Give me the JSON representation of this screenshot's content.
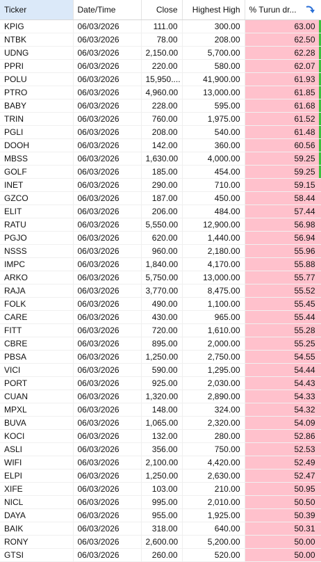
{
  "table": {
    "headers": [
      "Ticker",
      "Date/Time",
      "Close",
      "Highest High",
      "% Turun dr..."
    ],
    "rows": [
      [
        "KPIG",
        "06/03/2026",
        "111.00",
        "300.00",
        "63.00"
      ],
      [
        "NTBK",
        "06/03/2026",
        "78.00",
        "208.00",
        "62.50"
      ],
      [
        "UDNG",
        "06/03/2026",
        "2,150.00",
        "5,700.00",
        "62.28"
      ],
      [
        "PPRI",
        "06/03/2026",
        "220.00",
        "580.00",
        "62.07"
      ],
      [
        "POLU",
        "06/03/2026",
        "15,950....",
        "41,900.00",
        "61.93"
      ],
      [
        "PTRO",
        "06/03/2026",
        "4,960.00",
        "13,000.00",
        "61.85"
      ],
      [
        "BABY",
        "06/03/2026",
        "228.00",
        "595.00",
        "61.68"
      ],
      [
        "TRIN",
        "06/03/2026",
        "760.00",
        "1,975.00",
        "61.52"
      ],
      [
        "PGLI",
        "06/03/2026",
        "208.00",
        "540.00",
        "61.48"
      ],
      [
        "DOOH",
        "06/03/2026",
        "142.00",
        "360.00",
        "60.56"
      ],
      [
        "MBSS",
        "06/03/2026",
        "1,630.00",
        "4,000.00",
        "59.25"
      ],
      [
        "GOLF",
        "06/03/2026",
        "185.00",
        "454.00",
        "59.25"
      ],
      [
        "INET",
        "06/03/2026",
        "290.00",
        "710.00",
        "59.15"
      ],
      [
        "GZCO",
        "06/03/2026",
        "187.00",
        "450.00",
        "58.44"
      ],
      [
        "ELIT",
        "06/03/2026",
        "206.00",
        "484.00",
        "57.44"
      ],
      [
        "RATU",
        "06/03/2026",
        "5,550.00",
        "12,900.00",
        "56.98"
      ],
      [
        "PGJO",
        "06/03/2026",
        "620.00",
        "1,440.00",
        "56.94"
      ],
      [
        "NSSS",
        "06/03/2026",
        "960.00",
        "2,180.00",
        "55.96"
      ],
      [
        "IMPC",
        "06/03/2026",
        "1,840.00",
        "4,170.00",
        "55.88"
      ],
      [
        "ARKO",
        "06/03/2026",
        "5,750.00",
        "13,000.00",
        "55.77"
      ],
      [
        "RAJA",
        "06/03/2026",
        "3,770.00",
        "8,475.00",
        "55.52"
      ],
      [
        "FOLK",
        "06/03/2026",
        "490.00",
        "1,100.00",
        "55.45"
      ],
      [
        "CARE",
        "06/03/2026",
        "430.00",
        "965.00",
        "55.44"
      ],
      [
        "FITT",
        "06/03/2026",
        "720.00",
        "1,610.00",
        "55.28"
      ],
      [
        "CBRE",
        "06/03/2026",
        "895.00",
        "2,000.00",
        "55.25"
      ],
      [
        "PBSA",
        "06/03/2026",
        "1,250.00",
        "2,750.00",
        "54.55"
      ],
      [
        "VICI",
        "06/03/2026",
        "590.00",
        "1,295.00",
        "54.44"
      ],
      [
        "PORT",
        "06/03/2026",
        "925.00",
        "2,030.00",
        "54.43"
      ],
      [
        "CUAN",
        "06/03/2026",
        "1,320.00",
        "2,890.00",
        "54.33"
      ],
      [
        "MPXL",
        "06/03/2026",
        "148.00",
        "324.00",
        "54.32"
      ],
      [
        "BUVA",
        "06/03/2026",
        "1,065.00",
        "2,320.00",
        "54.09"
      ],
      [
        "KOCI",
        "06/03/2026",
        "132.00",
        "280.00",
        "52.86"
      ],
      [
        "ASLI",
        "06/03/2026",
        "356.00",
        "750.00",
        "52.53"
      ],
      [
        "WIFI",
        "06/03/2026",
        "2,100.00",
        "4,420.00",
        "52.49"
      ],
      [
        "ELPI",
        "06/03/2026",
        "1,250.00",
        "2,630.00",
        "52.47"
      ],
      [
        "XIFE",
        "06/03/2026",
        "103.00",
        "210.00",
        "50.95"
      ],
      [
        "NICL",
        "06/03/2026",
        "995.00",
        "2,010.00",
        "50.50"
      ],
      [
        "DAYA",
        "06/03/2026",
        "955.00",
        "1,925.00",
        "50.39"
      ],
      [
        "BAIK",
        "06/03/2026",
        "318.00",
        "640.00",
        "50.31"
      ],
      [
        "RONY",
        "06/03/2026",
        "2,600.00",
        "5,200.00",
        "50.00"
      ],
      [
        "GTSI",
        "06/03/2026",
        "260.00",
        "520.00",
        "50.00"
      ]
    ]
  }
}
